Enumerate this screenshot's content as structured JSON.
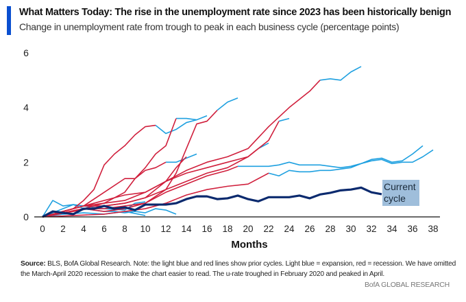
{
  "header": {
    "title": "What Matters Today: The rise in the unemployment rate since 2023 has been historically benign",
    "subtitle": "Change in unemployment rate from trough to peak in each business cycle (percentage points)"
  },
  "footer": {
    "source_label": "Source:",
    "source_text": " BLS, BofA Global Research. Note: the light blue and red lines show prior cycles. Light blue = expansion, red = recession. We have omitted the March-April 2020 recession to make the chart easier to read. The u-rate troughed in February 2020 and peaked in April.",
    "brand": "BofA GLOBAL RESEARCH"
  },
  "chart_data": {
    "type": "line",
    "title": "What Matters Today: The rise in the unemployment rate since 2023 has been historically benign",
    "subtitle": "Change in unemployment rate from trough to peak in each business cycle (percentage points)",
    "xlabel": "Months",
    "ylabel": "",
    "xlim": [
      0,
      38
    ],
    "ylim": [
      0,
      6
    ],
    "xticks": [
      0,
      2,
      4,
      6,
      8,
      10,
      12,
      14,
      16,
      18,
      20,
      22,
      24,
      26,
      28,
      30,
      32,
      34,
      36,
      38
    ],
    "yticks": [
      0,
      2,
      4,
      6
    ],
    "grid": false,
    "colors": {
      "expansion": "#1ea0e0",
      "recession": "#d01f3c",
      "current": "#0b2a6e",
      "label_bg": "#9fbedb"
    },
    "current_label": "Current\ncycle",
    "current": {
      "x": [
        0,
        1,
        2,
        3,
        4,
        5,
        6,
        7,
        8,
        9,
        10,
        11,
        12,
        13,
        14,
        15,
        16,
        17,
        18,
        19,
        20,
        21,
        22,
        23,
        24,
        25,
        26,
        27,
        28,
        29,
        30,
        31,
        32,
        33
      ],
      "y": [
        0,
        0.2,
        0.15,
        0.1,
        0.3,
        0.3,
        0.4,
        0.3,
        0.35,
        0.25,
        0.45,
        0.45,
        0.45,
        0.5,
        0.65,
        0.75,
        0.75,
        0.65,
        0.68,
        0.78,
        0.65,
        0.57,
        0.72,
        0.72,
        0.72,
        0.78,
        0.68,
        0.82,
        0.88,
        0.97,
        1.0,
        1.07,
        0.9,
        0.83
      ]
    },
    "prior_cycles": [
      {
        "segments": [
          {
            "phase": "expansion",
            "x": [
              0,
              2,
              4
            ],
            "y": [
              0,
              0.2,
              0.4
            ]
          },
          {
            "phase": "recession",
            "x": [
              4,
              6,
              8,
              10,
              12,
              14,
              16,
              18,
              20,
              22,
              24,
              26,
              27
            ],
            "y": [
              0.4,
              0.5,
              0.6,
              0.9,
              1.3,
              1.7,
              2.0,
              2.2,
              2.5,
              3.3,
              4.0,
              4.6,
              5.0
            ]
          },
          {
            "phase": "expansion",
            "x": [
              27,
              28,
              29,
              30,
              31
            ],
            "y": [
              5.0,
              5.05,
              5.0,
              5.3,
              5.5
            ]
          }
        ]
      },
      {
        "segments": [
          {
            "phase": "recession",
            "x": [
              0,
              3,
              4,
              5,
              6,
              7,
              8,
              9,
              10,
              11
            ],
            "y": [
              0,
              0.3,
              0.6,
              1.0,
              1.9,
              2.3,
              2.6,
              3.0,
              3.3,
              3.35
            ]
          },
          {
            "phase": "expansion",
            "x": [
              11,
              12,
              13,
              14,
              15
            ],
            "y": [
              3.35,
              3.05,
              3.2,
              3.45,
              3.55
            ]
          }
        ]
      },
      {
        "segments": [
          {
            "phase": "recession",
            "x": [
              0,
              4,
              6,
              8,
              9,
              10,
              11,
              12,
              13
            ],
            "y": [
              0,
              0.3,
              0.5,
              0.9,
              1.4,
              1.8,
              2.3,
              2.6,
              3.6
            ]
          },
          {
            "phase": "expansion",
            "x": [
              13,
              14,
              15,
              16
            ],
            "y": [
              3.6,
              3.6,
              3.55,
              3.7
            ]
          }
        ]
      },
      {
        "segments": [
          {
            "phase": "recession",
            "x": [
              0,
              4,
              6,
              8,
              10,
              12,
              13,
              14,
              15,
              16,
              17
            ],
            "y": [
              0,
              0.3,
              0.2,
              0.3,
              0.5,
              1.0,
              1.6,
              2.5,
              3.4,
              3.5,
              3.9
            ]
          },
          {
            "phase": "expansion",
            "x": [
              17,
              18,
              19
            ],
            "y": [
              3.9,
              4.2,
              4.35
            ]
          }
        ]
      },
      {
        "segments": [
          {
            "phase": "recession",
            "x": [
              0,
              4,
              6,
              8,
              10,
              12,
              14,
              16,
              18,
              20,
              22,
              23
            ],
            "y": [
              0,
              0.4,
              0.4,
              0.5,
              0.7,
              1.0,
              1.3,
              1.6,
              1.8,
              2.2,
              2.8,
              3.5
            ]
          },
          {
            "phase": "expansion",
            "x": [
              23,
              24
            ],
            "y": [
              3.5,
              3.6
            ]
          }
        ]
      },
      {
        "segments": [
          {
            "phase": "recession",
            "x": [
              0,
              4,
              8,
              10,
              12,
              14,
              16,
              18,
              19,
              20,
              21
            ],
            "y": [
              0,
              0.4,
              0.8,
              0.9,
              1.3,
              1.6,
              1.8,
              2.0,
              2.1,
              2.2,
              2.5
            ]
          },
          {
            "phase": "expansion",
            "x": [
              21,
              22
            ],
            "y": [
              2.5,
              2.7
            ]
          }
        ]
      },
      {
        "segments": [
          {
            "phase": "recession",
            "x": [
              0,
              4,
              6,
              8,
              10,
              12,
              14,
              16,
              18,
              19
            ],
            "y": [
              0,
              0.3,
              0.3,
              0.4,
              0.5,
              0.9,
              1.2,
              1.5,
              1.7,
              1.85
            ]
          },
          {
            "phase": "expansion",
            "x": [
              19,
              20,
              21,
              22,
              23,
              24,
              25,
              26,
              27,
              28,
              29,
              30,
              31,
              32,
              33,
              34,
              35,
              36,
              37
            ],
            "y": [
              1.85,
              1.85,
              1.85,
              1.85,
              1.9,
              2.0,
              1.9,
              1.9,
              1.9,
              1.85,
              1.8,
              1.85,
              1.95,
              2.1,
              2.15,
              2.0,
              2.05,
              2.3,
              2.6
            ]
          }
        ]
      },
      {
        "segments": [
          {
            "phase": "recession",
            "x": [
              0,
              6,
              8,
              10,
              12,
              14,
              16,
              18,
              20,
              22
            ],
            "y": [
              0,
              0.1,
              0.2,
              0.3,
              0.5,
              0.8,
              1.0,
              1.12,
              1.2,
              1.6
            ]
          },
          {
            "phase": "expansion",
            "x": [
              22,
              23,
              24,
              25,
              26,
              27,
              28,
              29,
              30,
              31,
              32,
              33,
              34,
              35,
              36,
              37,
              38
            ],
            "y": [
              1.6,
              1.5,
              1.7,
              1.65,
              1.65,
              1.7,
              1.7,
              1.75,
              1.8,
              1.95,
              2.05,
              2.1,
              1.95,
              2.0,
              2.0,
              2.2,
              2.45
            ]
          }
        ]
      },
      {
        "segments": [
          {
            "phase": "recession",
            "x": [
              0,
              4,
              6,
              8,
              9,
              10,
              11,
              12
            ],
            "y": [
              0,
              0.4,
              0.9,
              1.4,
              1.4,
              1.7,
              1.8,
              2.0
            ]
          },
          {
            "phase": "expansion",
            "x": [
              12,
              13,
              14,
              15
            ],
            "y": [
              2.0,
              2.0,
              2.15,
              2.3
            ]
          }
        ]
      },
      {
        "segments": [
          {
            "phase": "recession",
            "x": [
              0,
              3,
              6,
              8,
              10,
              11,
              12,
              13,
              14
            ],
            "y": [
              0,
              0.2,
              0.4,
              0.5,
              0.7,
              1.0,
              1.3,
              1.8,
              2.2
            ]
          }
        ]
      },
      {
        "segments": [
          {
            "phase": "expansion",
            "x": [
              0,
              1,
              2,
              3,
              4,
              5,
              6,
              7,
              8,
              9,
              10,
              11,
              12,
              13
            ],
            "y": [
              0,
              0.6,
              0.4,
              0.45,
              0.3,
              0.25,
              0.2,
              0.2,
              0.15,
              0.2,
              0.15,
              0.3,
              0.25,
              0.1
            ]
          }
        ]
      },
      {
        "segments": [
          {
            "phase": "expansion",
            "x": [
              0,
              2,
              3,
              4,
              6,
              8,
              9,
              10
            ],
            "y": [
              0,
              0.3,
              0.45,
              0.4,
              0.3,
              0.25,
              0.5,
              0.55
            ]
          }
        ]
      },
      {
        "segments": [
          {
            "phase": "expansion",
            "x": [
              0,
              2,
              4,
              6,
              8,
              10
            ],
            "y": [
              0,
              0.1,
              0.15,
              0.1,
              0.2,
              0.05
            ]
          }
        ]
      }
    ]
  }
}
